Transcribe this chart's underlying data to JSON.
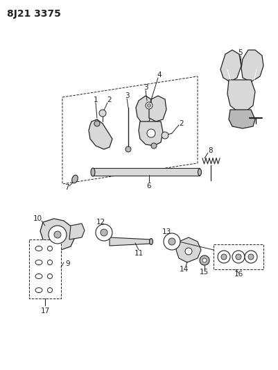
{
  "title": "8J21 3375",
  "bg_color": "#ffffff",
  "line_color": "#222222",
  "fill_light": "#d8d8d8",
  "fill_medium": "#b8b8b8",
  "fill_dark": "#909090",
  "label_fontsize": 7.5,
  "fig_width": 4.02,
  "fig_height": 5.33,
  "dpi": 100
}
